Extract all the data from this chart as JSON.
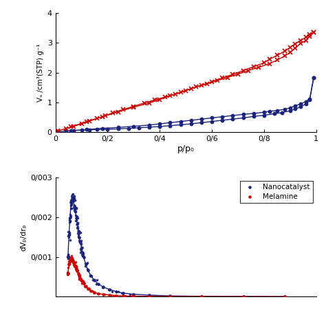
{
  "top_panel": {
    "xlabel": "p/p₀",
    "ylabel": "Vₐ /cm³(STP) g⁻¹",
    "xlim": [
      0,
      1.0
    ],
    "ylim": [
      0,
      4.0
    ],
    "xticks": [
      0,
      0.2,
      0.4,
      0.6,
      0.8,
      1.0
    ],
    "xticklabels": [
      "0",
      "0/2",
      "0/4",
      "0/6",
      "0/8",
      "1"
    ],
    "yticks": [
      0,
      1,
      2,
      3,
      4
    ],
    "yticklabels": [
      "0",
      "1",
      "2",
      "3",
      "4"
    ],
    "blue_ads_x": [
      0.01,
      0.04,
      0.07,
      0.1,
      0.13,
      0.16,
      0.2,
      0.24,
      0.28,
      0.32,
      0.36,
      0.4,
      0.44,
      0.48,
      0.52,
      0.56,
      0.6,
      0.64,
      0.68,
      0.72,
      0.76,
      0.8,
      0.84,
      0.87,
      0.9,
      0.92,
      0.94,
      0.96,
      0.975,
      0.99
    ],
    "blue_ads_y": [
      0.02,
      0.04,
      0.06,
      0.07,
      0.08,
      0.09,
      0.1,
      0.11,
      0.13,
      0.15,
      0.17,
      0.19,
      0.22,
      0.25,
      0.28,
      0.32,
      0.36,
      0.4,
      0.44,
      0.48,
      0.53,
      0.57,
      0.62,
      0.66,
      0.72,
      0.78,
      0.85,
      0.95,
      1.08,
      1.82
    ],
    "blue_des_x": [
      0.99,
      0.975,
      0.96,
      0.94,
      0.92,
      0.9,
      0.88,
      0.85,
      0.82,
      0.8,
      0.76,
      0.72,
      0.68,
      0.64,
      0.6,
      0.56,
      0.52,
      0.48,
      0.44,
      0.4,
      0.36,
      0.3,
      0.24,
      0.18,
      0.12,
      0.06
    ],
    "blue_des_y": [
      1.82,
      1.12,
      1.03,
      0.95,
      0.89,
      0.82,
      0.77,
      0.73,
      0.7,
      0.67,
      0.63,
      0.6,
      0.56,
      0.52,
      0.48,
      0.44,
      0.4,
      0.36,
      0.32,
      0.28,
      0.24,
      0.2,
      0.16,
      0.13,
      0.09,
      0.05
    ],
    "red_ads_x": [
      0.01,
      0.04,
      0.07,
      0.1,
      0.13,
      0.16,
      0.19,
      0.22,
      0.26,
      0.3,
      0.34,
      0.38,
      0.42,
      0.46,
      0.5,
      0.54,
      0.58,
      0.62,
      0.66,
      0.7,
      0.74,
      0.78,
      0.82,
      0.85,
      0.88,
      0.9,
      0.92,
      0.94,
      0.96,
      0.975,
      0.99
    ],
    "red_ads_y": [
      0.05,
      0.12,
      0.2,
      0.28,
      0.37,
      0.46,
      0.55,
      0.65,
      0.76,
      0.87,
      0.98,
      1.08,
      1.18,
      1.28,
      1.4,
      1.52,
      1.62,
      1.73,
      1.84,
      1.95,
      2.07,
      2.18,
      2.3,
      2.42,
      2.56,
      2.68,
      2.82,
      2.98,
      3.08,
      3.22,
      3.35
    ],
    "red_des_x": [
      0.99,
      0.975,
      0.96,
      0.94,
      0.92,
      0.9,
      0.88,
      0.85,
      0.82,
      0.8,
      0.76,
      0.72,
      0.68,
      0.64,
      0.6,
      0.56,
      0.52,
      0.48,
      0.44,
      0.4,
      0.36,
      0.3,
      0.24,
      0.18,
      0.12,
      0.06
    ],
    "red_des_y": [
      3.35,
      3.28,
      3.18,
      3.08,
      2.97,
      2.85,
      2.72,
      2.58,
      2.45,
      2.33,
      2.2,
      2.07,
      1.94,
      1.82,
      1.7,
      1.58,
      1.46,
      1.34,
      1.22,
      1.1,
      0.98,
      0.84,
      0.68,
      0.52,
      0.36,
      0.18
    ],
    "blue_color": "#1a237e",
    "red_color": "#cc0000"
  },
  "bottom_panel": {
    "ylabel": "dVₚ/drₚ",
    "xlim": [
      0,
      25
    ],
    "ylim": [
      0,
      0.003
    ],
    "yticks": [
      0,
      0.001,
      0.002,
      0.003
    ],
    "yticklabels": [
      "",
      "0/001",
      "0/002",
      "0/003"
    ],
    "legend_nanocatalyst": "Nanocatalyst",
    "legend_melamine": "Melamine",
    "blue_x": [
      1.2,
      1.3,
      1.4,
      1.5,
      1.6,
      1.7,
      1.8,
      1.9,
      2.0,
      2.1,
      2.2,
      2.3,
      2.4,
      2.5,
      2.6,
      2.7,
      2.9,
      3.1,
      3.4,
      3.7,
      4.1,
      4.6,
      5.2,
      5.8,
      6.5,
      7.5,
      9.0,
      11.0,
      14.0,
      18.0,
      22.0
    ],
    "blue_y": [
      0.001,
      0.00155,
      0.002,
      0.00238,
      0.00248,
      0.00242,
      0.0023,
      0.00215,
      0.00198,
      0.00182,
      0.00165,
      0.0015,
      0.00136,
      0.00123,
      0.00111,
      0.001,
      0.00082,
      0.00067,
      0.00053,
      0.00042,
      0.00032,
      0.00024,
      0.00018,
      0.00013,
      9e-05,
      6e-05,
      4e-05,
      2e-05,
      1e-05,
      5e-06,
      2e-06
    ],
    "red_x": [
      1.2,
      1.3,
      1.4,
      1.5,
      1.6,
      1.7,
      1.8,
      1.9,
      2.0,
      2.1,
      2.2,
      2.3,
      2.4,
      2.5,
      2.6,
      2.7,
      2.9,
      3.1,
      3.4,
      3.7,
      4.1,
      4.6,
      5.2,
      5.8,
      6.5,
      7.5,
      9.0,
      11.0,
      14.0,
      18.0,
      22.0
    ],
    "red_y": [
      0.0006,
      0.00082,
      0.00093,
      0.00096,
      0.00094,
      0.0009,
      0.00085,
      0.00079,
      0.00072,
      0.00065,
      0.00058,
      0.00052,
      0.00046,
      0.00041,
      0.00037,
      0.00033,
      0.00026,
      0.0002,
      0.00015,
      0.00011,
      8e-05,
      6e-05,
      4e-05,
      3e-05,
      2e-05,
      1.5e-05,
      1e-05,
      7e-06,
      4e-06,
      2e-06,
      1e-06
    ],
    "blue_color": "#1a237e",
    "red_color": "#cc0000"
  }
}
